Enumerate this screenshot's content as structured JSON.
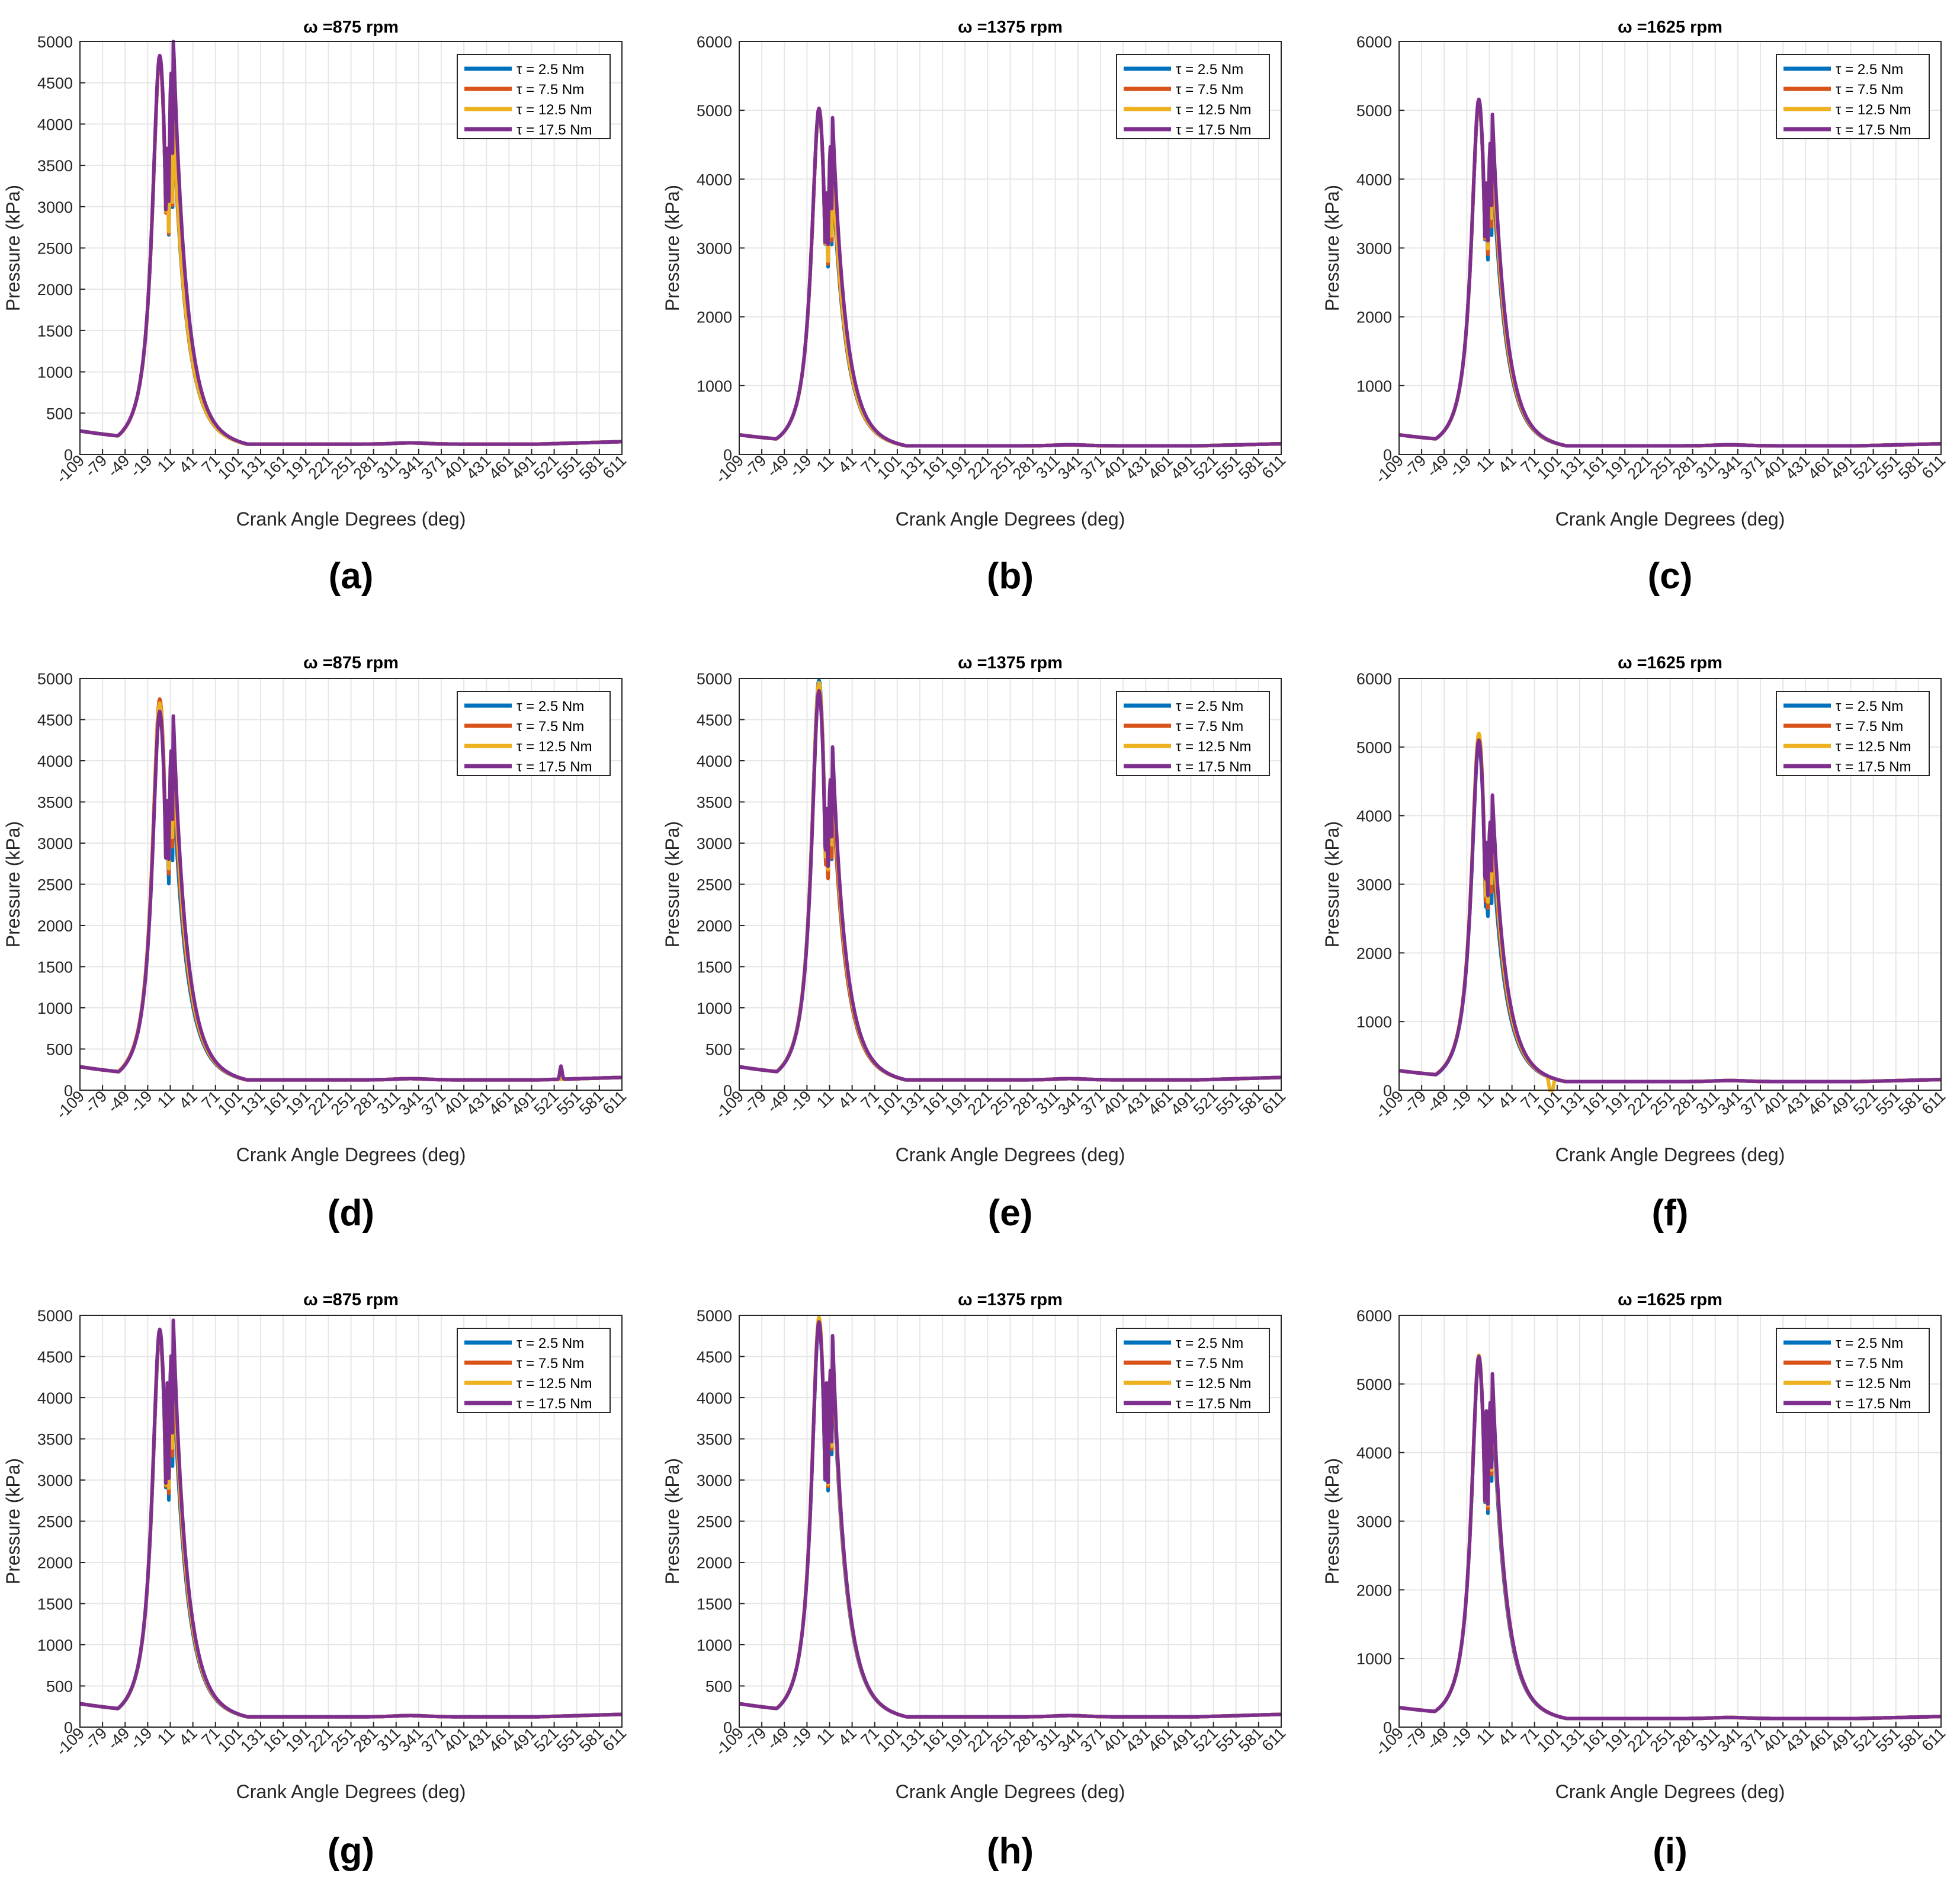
{
  "x_label": "Crank Angle Degrees (deg)",
  "y_label": "Pressure (kPa)",
  "x_ticks": [
    -109,
    -79,
    -49,
    -19,
    11,
    41,
    71,
    101,
    131,
    161,
    191,
    221,
    251,
    281,
    311,
    341,
    371,
    401,
    431,
    461,
    491,
    521,
    551,
    581,
    611
  ],
  "x_range": [
    -109,
    611
  ],
  "series_names": [
    "τ = 2.5 Nm",
    "τ = 7.5 Nm",
    "τ = 12.5 Nm",
    "τ = 17.5 Nm"
  ],
  "series_colors": [
    "#0072BD",
    "#D95319",
    "#EDB120",
    "#7E2F8E"
  ],
  "chart_data": [
    {
      "label": "(a)",
      "type": "line",
      "title": "ω =875 rpm",
      "ylim": [
        0,
        5000
      ],
      "yticks": [
        0,
        500,
        1000,
        1500,
        2000,
        2500,
        3000,
        3500,
        4000,
        4500,
        5000
      ],
      "peaks": [
        4800,
        4780,
        4810,
        4830
      ],
      "peak2": [
        3850,
        3900,
        3950,
        4920
      ],
      "dip": [
        3850,
        3880,
        3900,
        3900
      ],
      "notch": [
        0,
        0,
        0,
        0
      ],
      "bump": [
        0,
        0,
        0,
        0
      ]
    },
    {
      "label": "(b)",
      "type": "line",
      "title": "ω =1375 rpm",
      "ylim": [
        0,
        6000
      ],
      "yticks": [
        0,
        1000,
        2000,
        3000,
        4000,
        5000,
        6000
      ],
      "peaks": [
        5000,
        5010,
        5020,
        5030
      ],
      "peak2": [
        3900,
        4000,
        4100,
        4750
      ],
      "dip": [
        3800,
        3900,
        3950,
        4000
      ],
      "notch": [
        0,
        0,
        0,
        0
      ],
      "bump": [
        0,
        0,
        0,
        0
      ]
    },
    {
      "label": "(c)",
      "type": "line",
      "title": "ω =1625 rpm",
      "ylim": [
        0,
        6000
      ],
      "yticks": [
        0,
        1000,
        2000,
        3000,
        4000,
        5000,
        6000
      ],
      "peaks": [
        5100,
        5120,
        5140,
        5160
      ],
      "peak2": [
        4100,
        4300,
        4500,
        4800
      ],
      "dip": [
        3950,
        4050,
        4100,
        4150
      ],
      "notch": [
        0,
        0,
        0,
        0
      ],
      "bump": [
        0,
        0,
        0,
        0
      ]
    },
    {
      "label": "(d)",
      "type": "line",
      "title": "ω =875 rpm",
      "ylim": [
        0,
        5000
      ],
      "yticks": [
        0,
        500,
        1000,
        1500,
        2000,
        2500,
        3000,
        3500,
        4000,
        4500,
        5000
      ],
      "peaks": [
        4650,
        4750,
        4700,
        4600
      ],
      "peak2": [
        3550,
        3800,
        4000,
        4380
      ],
      "dip": [
        3550,
        3650,
        3700,
        3700
      ],
      "notch": [
        0,
        0,
        0,
        0
      ],
      "bump": [
        0,
        0,
        0,
        160
      ]
    },
    {
      "label": "(e)",
      "type": "line",
      "title": "ω =1375 rpm",
      "ylim": [
        0,
        5000
      ],
      "yticks": [
        0,
        500,
        1000,
        1500,
        2000,
        2500,
        3000,
        3500,
        4000,
        4500,
        5000
      ],
      "peaks": [
        4980,
        4900,
        4950,
        4850
      ],
      "peak2": [
        3500,
        3550,
        3800,
        3980
      ],
      "dip": [
        3450,
        3380,
        3500,
        3600
      ],
      "notch": [
        0,
        0,
        0,
        0
      ],
      "bump": [
        0,
        0,
        0,
        0
      ]
    },
    {
      "label": "(f)",
      "type": "line",
      "title": "ω =1625 rpm",
      "ylim": [
        0,
        6000
      ],
      "yticks": [
        0,
        1000,
        2000,
        3000,
        4000,
        5000,
        6000
      ],
      "peaks": [
        5050,
        5150,
        5200,
        5100
      ],
      "peak2": [
        3350,
        3600,
        3800,
        4120
      ],
      "dip": [
        3300,
        3400,
        3500,
        3800
      ],
      "notch": [
        0,
        0,
        300,
        0
      ],
      "bump": [
        0,
        0,
        0,
        0
      ]
    },
    {
      "label": "(g)",
      "type": "line",
      "title": "ω =875 rpm",
      "ylim": [
        0,
        5000
      ],
      "yticks": [
        0,
        500,
        1000,
        1500,
        2000,
        2500,
        3000,
        3500,
        4000,
        4500,
        5000
      ],
      "peaks": [
        4750,
        4780,
        4800,
        4830
      ],
      "peak2": [
        4150,
        4350,
        4500,
        4800
      ],
      "dip": [
        4150,
        4200,
        4300,
        4400
      ],
      "notch": [
        0,
        0,
        0,
        0
      ],
      "bump": [
        0,
        0,
        0,
        0
      ]
    },
    {
      "label": "(h)",
      "type": "line",
      "title": "ω =1375 rpm",
      "ylim": [
        0,
        5000
      ],
      "yticks": [
        0,
        500,
        1000,
        1500,
        2000,
        2500,
        3000,
        3500,
        4000,
        4500,
        5000
      ],
      "peaks": [
        4900,
        4950,
        4980,
        4920
      ],
      "peak2": [
        4350,
        4450,
        4500,
        4600
      ],
      "dip": [
        4300,
        4350,
        4400,
        4400
      ],
      "notch": [
        0,
        0,
        0,
        0
      ],
      "bump": [
        0,
        0,
        0,
        0
      ]
    },
    {
      "label": "(i)",
      "type": "line",
      "title": "ω =1625 rpm",
      "ylim": [
        0,
        6000
      ],
      "yticks": [
        0,
        1000,
        2000,
        3000,
        4000,
        5000,
        6000
      ],
      "peaks": [
        5350,
        5380,
        5420,
        5400
      ],
      "peak2": [
        4700,
        4850,
        4950,
        5020
      ],
      "dip": [
        4700,
        4750,
        4800,
        4850
      ],
      "notch": [
        0,
        0,
        0,
        0
      ],
      "bump": [
        0,
        0,
        0,
        0
      ]
    }
  ]
}
